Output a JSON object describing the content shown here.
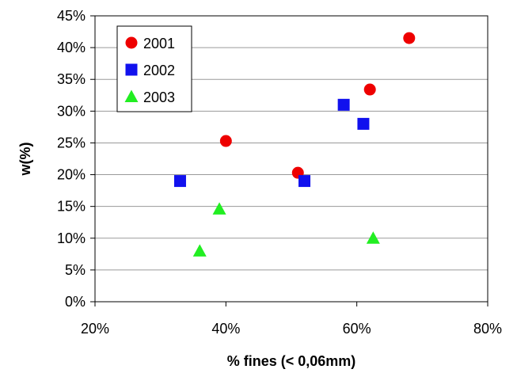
{
  "chart_data": {
    "type": "scatter",
    "title": "",
    "xlabel": "% fines (< 0,06mm)",
    "ylabel": "w(%)",
    "xlim": [
      0.2,
      0.8
    ],
    "ylim": [
      0,
      0.45
    ],
    "xticks": [
      0.2,
      0.4,
      0.6,
      0.8
    ],
    "yticks": [
      0,
      0.05,
      0.1,
      0.15,
      0.2,
      0.25,
      0.3,
      0.35,
      0.4,
      0.45
    ],
    "xtick_labels": [
      "20%",
      "40%",
      "60%",
      "80%"
    ],
    "ytick_labels": [
      "0%",
      "5%",
      "10%",
      "15%",
      "20%",
      "25%",
      "30%",
      "35%",
      "40%",
      "45%"
    ],
    "grid": "horizontal",
    "legend_position": "top-left",
    "series": [
      {
        "name": "2001",
        "marker": "circle",
        "color": "#ee0000",
        "points": [
          {
            "x": 0.4,
            "y": 0.253
          },
          {
            "x": 0.51,
            "y": 0.203
          },
          {
            "x": 0.62,
            "y": 0.334
          },
          {
            "x": 0.68,
            "y": 0.415
          }
        ]
      },
      {
        "name": "2002",
        "marker": "square",
        "color": "#1111ee",
        "points": [
          {
            "x": 0.33,
            "y": 0.19
          },
          {
            "x": 0.52,
            "y": 0.19
          },
          {
            "x": 0.58,
            "y": 0.31
          },
          {
            "x": 0.61,
            "y": 0.28
          }
        ]
      },
      {
        "name": "2003",
        "marker": "triangle",
        "color": "#22ee22",
        "points": [
          {
            "x": 0.36,
            "y": 0.08
          },
          {
            "x": 0.39,
            "y": 0.146
          },
          {
            "x": 0.625,
            "y": 0.1
          }
        ]
      }
    ]
  }
}
